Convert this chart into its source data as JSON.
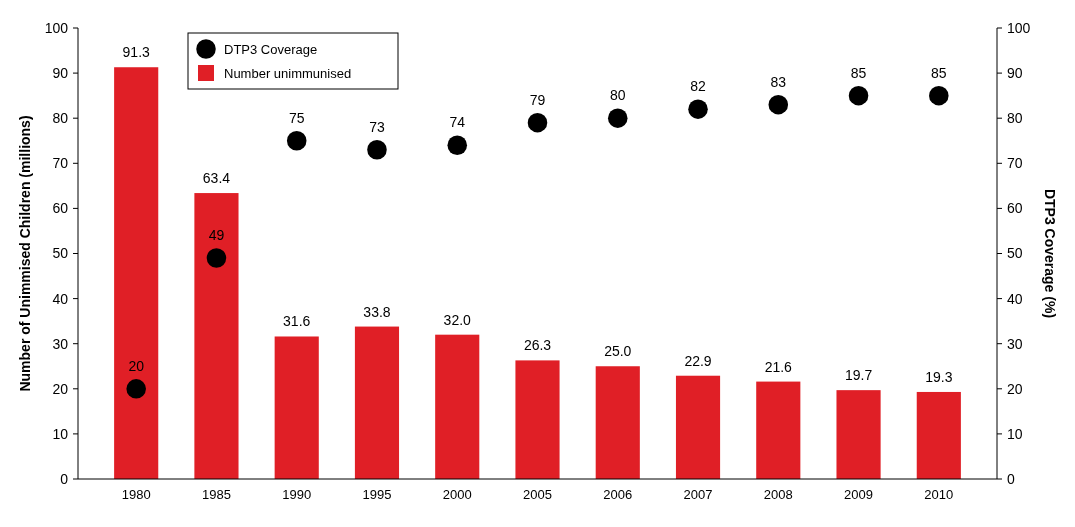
{
  "chart_data": {
    "type": "bar",
    "categories": [
      "1980",
      "1985",
      "1990",
      "1995",
      "2000",
      "2005",
      "2006",
      "2007",
      "2008",
      "2009",
      "2010"
    ],
    "ylabel": "Number of Unimmised Children (millions)",
    "y2label": "DTP3 Coverage (%)",
    "ylim": [
      0,
      100
    ],
    "yticks": [
      0,
      10,
      20,
      30,
      40,
      50,
      60,
      70,
      80,
      90,
      100
    ],
    "y2lim": [
      0,
      100
    ],
    "y2ticks": [
      0,
      10,
      20,
      30,
      40,
      50,
      60,
      70,
      80,
      90,
      100
    ],
    "legend": "top left",
    "grid": false,
    "series": [
      {
        "name": "DTP3 Coverage",
        "type": "scatter",
        "axis": "y2",
        "color": "#000000",
        "marker": "circle",
        "values": [
          20,
          49,
          75,
          73,
          74,
          79,
          80,
          82,
          83,
          85,
          85
        ],
        "value_labels": [
          "20",
          "49",
          "75",
          "73",
          "74",
          "79",
          "80",
          "82",
          "83",
          "85",
          "85"
        ]
      },
      {
        "name": "Number unimmunised",
        "color": "#e01f26",
        "values": [
          91.3,
          63.4,
          31.6,
          33.8,
          32.0,
          26.3,
          25.0,
          22.9,
          21.6,
          19.7,
          19.3
        ],
        "value_labels": [
          "91.3",
          "63.4",
          "31.6",
          "33.8",
          "32.0",
          "26.3",
          "25.0",
          "22.9",
          "21.6",
          "19.7",
          "19.3"
        ]
      }
    ]
  }
}
